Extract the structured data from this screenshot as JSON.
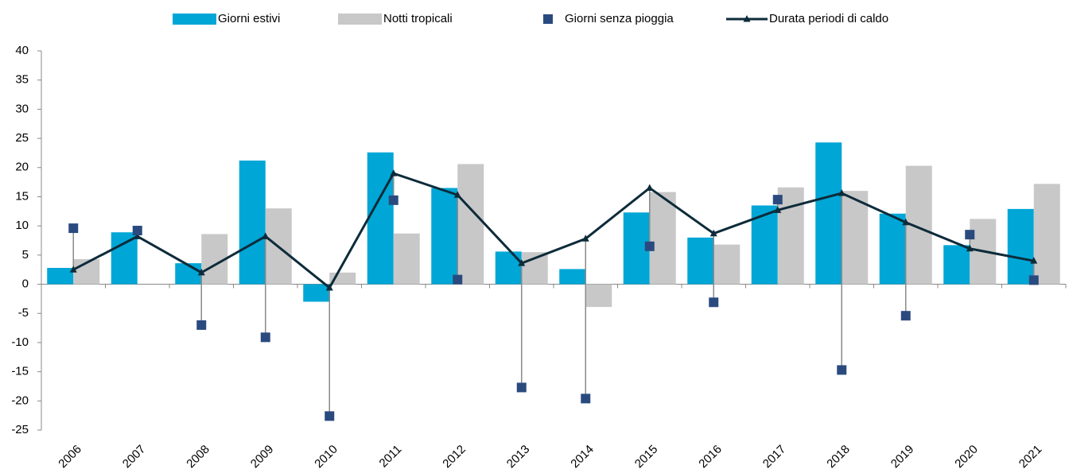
{
  "chart_data": {
    "type": "bar",
    "categories": [
      "2006",
      "2007",
      "2008",
      "2009",
      "2010",
      "2011",
      "2012",
      "2013",
      "2014",
      "2015",
      "2016",
      "2017",
      "2018",
      "2019",
      "2020",
      "2021"
    ],
    "series": [
      {
        "name": "Giorni estivi",
        "type": "bar",
        "color": "#00a6d6",
        "values": [
          2.8,
          8.9,
          3.6,
          21.2,
          -3.0,
          22.6,
          16.5,
          5.6,
          2.6,
          12.3,
          8.0,
          13.5,
          24.3,
          12.1,
          6.7,
          12.9
        ]
      },
      {
        "name": "Notti tropicali",
        "type": "bar",
        "color": "#c8c8c8",
        "values": [
          4.3,
          0,
          8.6,
          13.0,
          2.0,
          8.7,
          20.6,
          5.5,
          -3.9,
          15.8,
          6.8,
          16.6,
          16.0,
          20.3,
          11.2,
          17.2
        ]
      },
      {
        "name": "Giorni senza pioggia",
        "type": "scatter",
        "color": "#2a4a7f",
        "values": [
          9.6,
          9.2,
          -7.0,
          -9.1,
          -22.6,
          14.4,
          0.8,
          -17.7,
          -19.6,
          6.5,
          -3.1,
          14.5,
          -14.7,
          -5.4,
          8.5,
          0.7
        ]
      },
      {
        "name": "Durata periodi di caldo",
        "type": "line",
        "color": "#0d2b3a",
        "values": [
          2.5,
          8.2,
          2.0,
          8.2,
          -0.6,
          19.0,
          15.3,
          3.6,
          7.8,
          16.5,
          8.7,
          12.7,
          15.6,
          10.6,
          6.1,
          4.0
        ]
      }
    ],
    "ylim": [
      -25,
      40
    ],
    "yticks": [
      -25,
      -20,
      -15,
      -10,
      -5,
      0,
      5,
      10,
      15,
      20,
      25,
      30,
      35,
      40
    ],
    "legend": "top"
  }
}
